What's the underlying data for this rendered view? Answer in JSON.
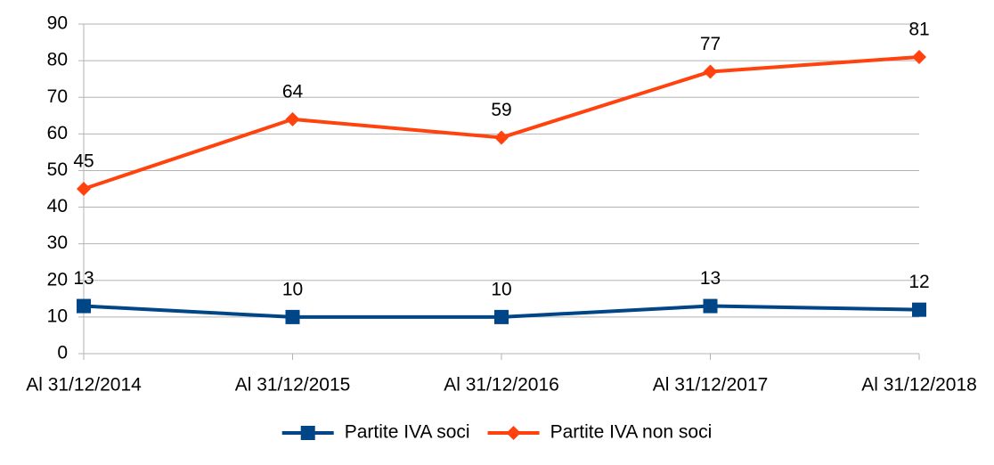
{
  "chart_data": {
    "type": "line",
    "categories": [
      "Al 31/12/2014",
      "Al 31/12/2015",
      "Al 31/12/2016",
      "Al 31/12/2017",
      "Al 31/12/2018"
    ],
    "series": [
      {
        "name": "Partite IVA soci",
        "color": "#004586",
        "marker": "square",
        "values": [
          13,
          10,
          10,
          13,
          12
        ]
      },
      {
        "name": "Partite IVA non soci",
        "color": "#ff420e",
        "marker": "diamond",
        "values": [
          45,
          64,
          59,
          77,
          81
        ]
      }
    ],
    "ylim": [
      0,
      90
    ],
    "yticks": [
      0,
      10,
      20,
      30,
      40,
      50,
      60,
      70,
      80,
      90
    ],
    "grid": true,
    "legend": "bottom"
  }
}
